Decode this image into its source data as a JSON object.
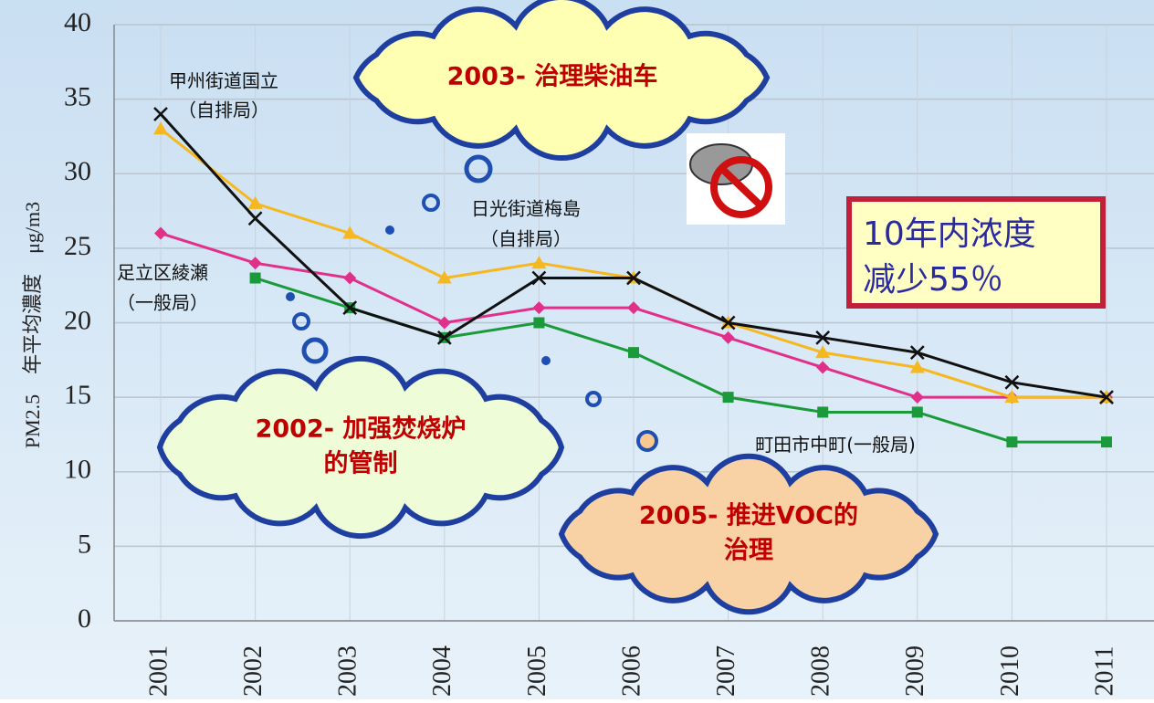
{
  "chart_data": {
    "type": "line",
    "y_label": "PM2.5　年平均濃度　μg/m3",
    "categories": [
      "2001",
      "2002",
      "2003",
      "2004",
      "2005",
      "2006",
      "2007",
      "2008",
      "2009",
      "2010",
      "2011"
    ],
    "ylim": [
      0,
      40
    ],
    "yticks": [
      0,
      5,
      10,
      15,
      20,
      25,
      30,
      35,
      40
    ],
    "grid": true,
    "series": [
      {
        "name": "甲州街道国立",
        "name_sub": "（自排局）",
        "color": "#111111",
        "marker": "x",
        "values": [
          34,
          27,
          21,
          19,
          23,
          23,
          20,
          19,
          18,
          16,
          15
        ]
      },
      {
        "name": "日光街道梅島",
        "name_sub": "（自排局）",
        "color": "#f5b820",
        "marker": "triangle",
        "values": [
          33,
          28,
          26,
          23,
          24,
          23,
          20,
          18,
          17,
          15,
          15
        ]
      },
      {
        "name": "足立区綾瀬",
        "name_sub": "（一般局）",
        "color": "#e0308a",
        "marker": "diamond",
        "values": [
          26,
          24,
          23,
          20,
          21,
          21,
          19,
          17,
          15,
          15,
          15
        ]
      },
      {
        "name": "町田市中町",
        "name_sub": "(一般局)",
        "color": "#1a9a3a",
        "marker": "square",
        "values": [
          null,
          23,
          21,
          19,
          20,
          18,
          15,
          14,
          14,
          12,
          12
        ]
      }
    ],
    "annotations": [
      {
        "lines": [
          "2003- 治理柴油车"
        ]
      },
      {
        "lines": [
          "2002- 加强焚烧炉",
          "的管制"
        ]
      },
      {
        "lines": [
          "2005- 推进VOC的",
          "治理"
        ]
      }
    ],
    "callout": {
      "lines": [
        "10年内浓度",
        "减少55％"
      ]
    }
  }
}
